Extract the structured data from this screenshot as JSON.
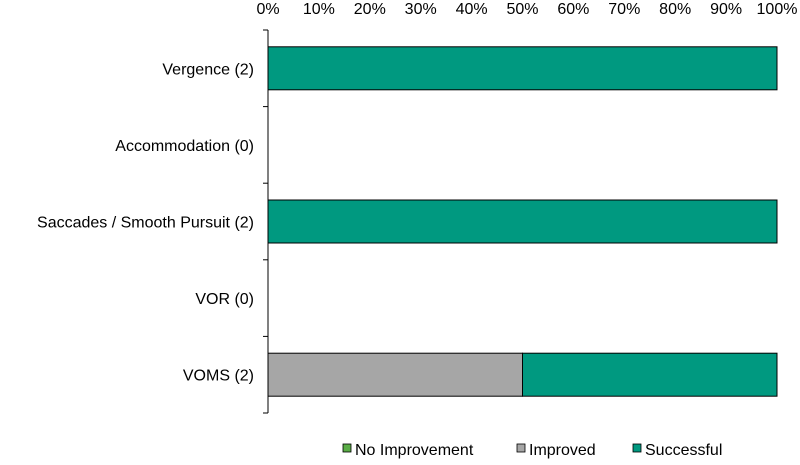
{
  "chart_data": {
    "type": "bar",
    "orientation": "horizontal",
    "stacked": "percent",
    "title": "",
    "xlabel": "",
    "ylabel": "",
    "xlim": [
      0,
      100
    ],
    "x_ticks": [
      "0%",
      "10%",
      "20%",
      "30%",
      "40%",
      "50%",
      "60%",
      "70%",
      "80%",
      "90%",
      "100%"
    ],
    "x_axis_position": "top",
    "grid": false,
    "categories": [
      "Vergence (2)",
      "Accommodation (0)",
      "Saccades / Smooth Pursuit (2)",
      "VOR (0)",
      "VOMS (2)"
    ],
    "series": [
      {
        "name": "No Improvement",
        "color": "#5aad46",
        "values": [
          0,
          0,
          0,
          0,
          0
        ]
      },
      {
        "name": "Improved",
        "color": "#a6a6a6",
        "values": [
          0,
          0,
          0,
          0,
          50
        ]
      },
      {
        "name": "Successful",
        "color": "#009980",
        "values": [
          100,
          0,
          100,
          0,
          50
        ]
      }
    ],
    "legend_position": "bottom-right"
  }
}
